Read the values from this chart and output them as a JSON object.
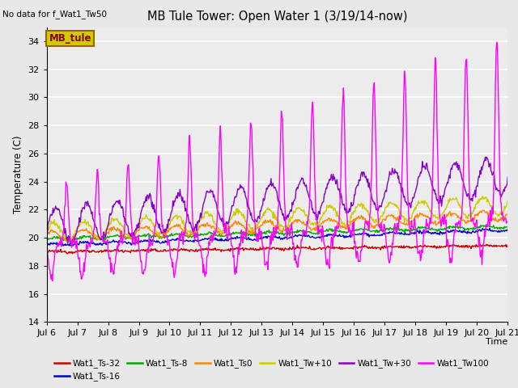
{
  "title": "MB Tule Tower: Open Water 1 (3/19/14-now)",
  "no_data_text": "No data for f_Wat1_Tw50",
  "xlabel": "Time",
  "ylabel": "Temperature (C)",
  "ylim": [
    14,
    35
  ],
  "yticks": [
    14,
    16,
    18,
    20,
    22,
    24,
    26,
    28,
    30,
    32,
    34
  ],
  "xtick_labels": [
    "Jul 6",
    "Jul 7",
    "Jul 8",
    "Jul 9",
    "Jul 10",
    "Jul 11",
    "Jul 12",
    "Jul 13",
    "Jul 14",
    "Jul 15",
    "Jul 16",
    "Jul 17",
    "Jul 18",
    "Jul 19",
    "Jul 20",
    "Jul 21"
  ],
  "bg_color": "#e8e8e8",
  "plot_bg": "#ececec",
  "legend_label": "MB_tule",
  "legend_box_facecolor": "#cccc00",
  "legend_box_edgecolor": "#996600",
  "legend_text_color": "#880000",
  "series_colors": {
    "Wat1_Ts-32": "#cc0000",
    "Wat1_Ts-16": "#0000cc",
    "Wat1_Ts-8": "#00aa00",
    "Wat1_Ts0": "#ff8800",
    "Wat1_Tw+10": "#cccc00",
    "Wat1_Tw+30": "#8800cc",
    "Wat1_Tw100": "#ff00ff"
  }
}
